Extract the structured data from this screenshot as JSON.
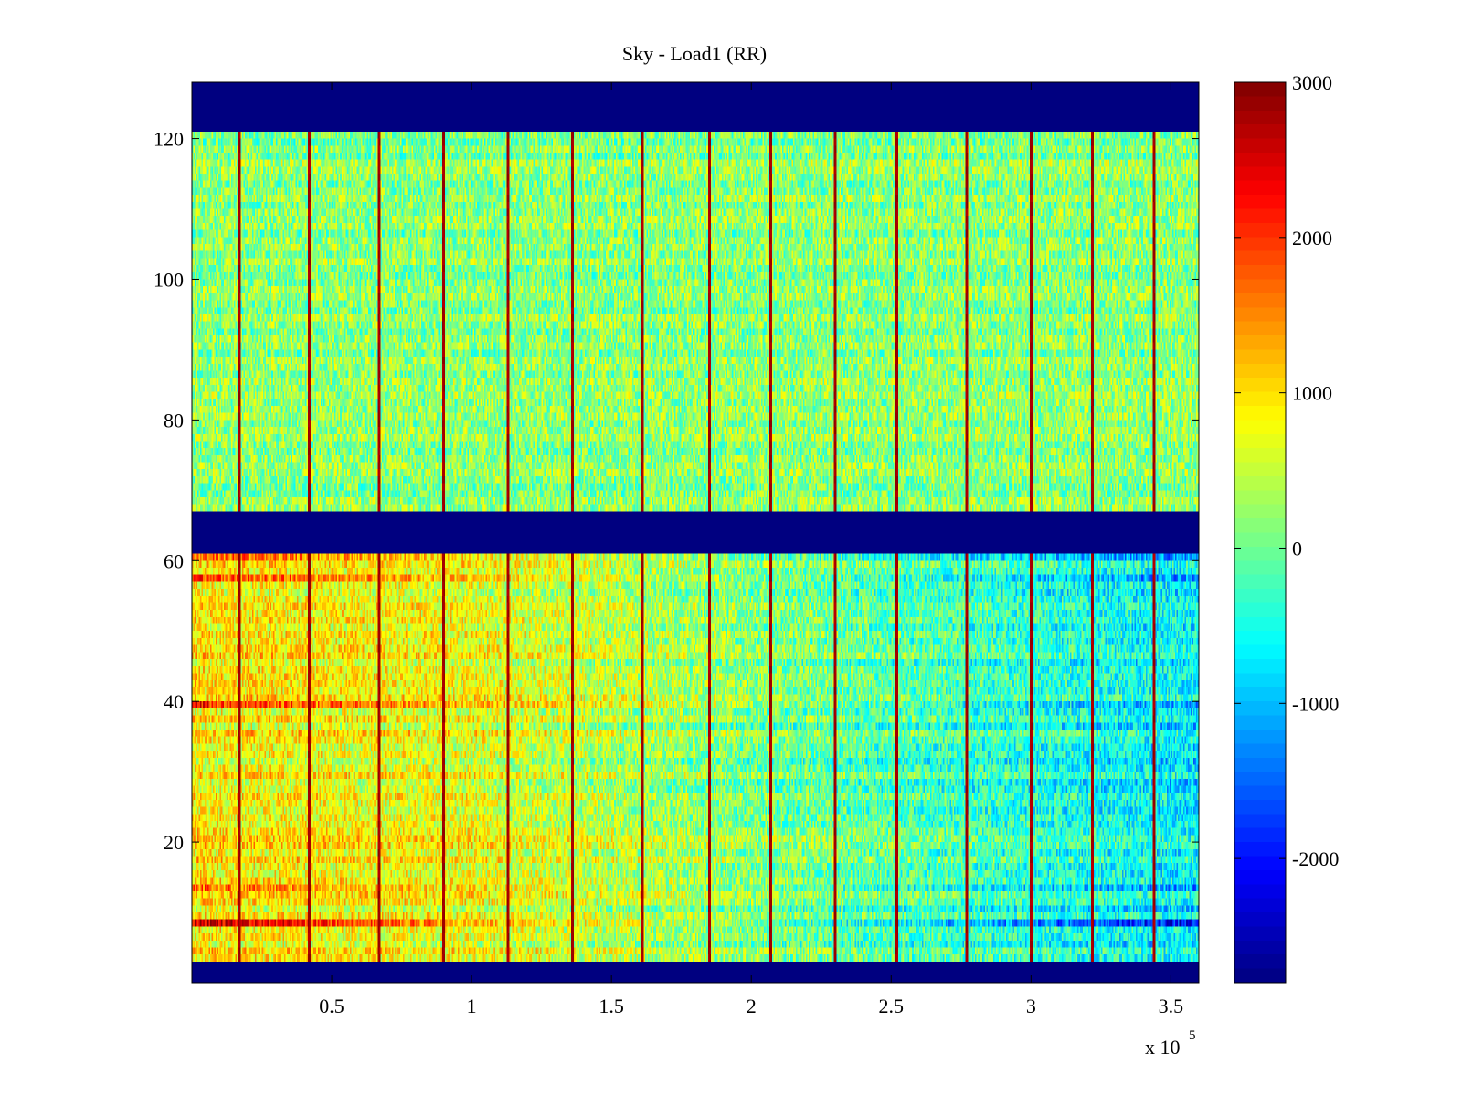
{
  "chart_data": {
    "type": "heatmap",
    "title": "Sky - Load1 (RR)",
    "xlabel": "",
    "ylabel": "",
    "x_multiplier_label": "x 10",
    "x_multiplier_exponent": "5",
    "xlim": [
      0,
      3.6
    ],
    "ylim": [
      0,
      128
    ],
    "xticks": [
      {
        "value": 0.5,
        "label": "0.5"
      },
      {
        "value": 1.0,
        "label": "1"
      },
      {
        "value": 1.5,
        "label": "1.5"
      },
      {
        "value": 2.0,
        "label": "2"
      },
      {
        "value": 2.5,
        "label": "2.5"
      },
      {
        "value": 3.0,
        "label": "3"
      },
      {
        "value": 3.5,
        "label": "3.5"
      }
    ],
    "yticks": [
      {
        "value": 20,
        "label": "20"
      },
      {
        "value": 40,
        "label": "40"
      },
      {
        "value": 60,
        "label": "60"
      },
      {
        "value": 80,
        "label": "80"
      },
      {
        "value": 100,
        "label": "100"
      },
      {
        "value": 120,
        "label": "120"
      }
    ],
    "colorbar": {
      "colormap": "jet",
      "range": [
        -2800,
        3000
      ],
      "ticks": [
        {
          "value": 3000,
          "label": "3000"
        },
        {
          "value": 2000,
          "label": "2000"
        },
        {
          "value": 1000,
          "label": "1000"
        },
        {
          "value": 0,
          "label": "0"
        },
        {
          "value": -1000,
          "label": "-1000"
        },
        {
          "value": -2000,
          "label": "-2000"
        }
      ]
    },
    "masked_channel_ranges": [
      [
        0,
        3
      ],
      [
        61,
        67
      ],
      [
        121,
        128
      ]
    ],
    "masked_value": -2800,
    "spike_x_positions": [
      0.17,
      0.42,
      0.67,
      0.9,
      1.13,
      1.36,
      1.61,
      1.85,
      2.07,
      2.3,
      2.52,
      2.77,
      3.0,
      3.22,
      3.44
    ],
    "spike_value": 2800,
    "lower_band_trend": [
      {
        "x": 0.0,
        "value": 900
      },
      {
        "x": 1.0,
        "value": 700
      },
      {
        "x": 2.0,
        "value": 100
      },
      {
        "x": 3.6,
        "value": -700
      }
    ],
    "upper_band_level": 150,
    "hot_channels": [
      {
        "channel": 8,
        "start_value": 2600,
        "end_value": -2100
      },
      {
        "channel": 39,
        "start_value": 2100,
        "end_value": -1200
      },
      {
        "channel": 13,
        "start_value": 1700,
        "end_value": -1300
      },
      {
        "channel": 57,
        "start_value": 1900,
        "end_value": -1300
      },
      {
        "channel": 60,
        "start_value": 1800,
        "end_value": -1400
      }
    ]
  }
}
